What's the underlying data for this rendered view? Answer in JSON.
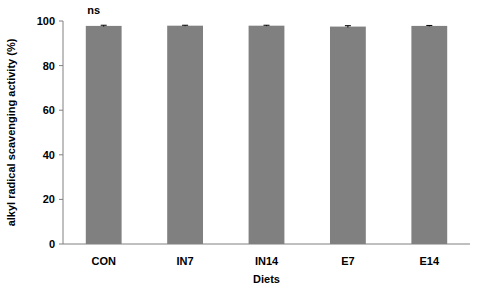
{
  "chart_data": {
    "type": "bar",
    "x_label": "Diets",
    "y_label": "alkyl radical scavenging activity (%)",
    "annotation": "ns",
    "categories": [
      "CON",
      "IN7",
      "IN14",
      "E7",
      "E14"
    ],
    "values": [
      97.8,
      97.9,
      97.9,
      97.5,
      97.8
    ],
    "errors": [
      0.3,
      0.2,
      0.2,
      0.4,
      0.2
    ],
    "color": "#808080",
    "ylim": [
      0,
      100
    ],
    "yticks": [
      0,
      20,
      40,
      60,
      80,
      100
    ],
    "grid": false
  }
}
